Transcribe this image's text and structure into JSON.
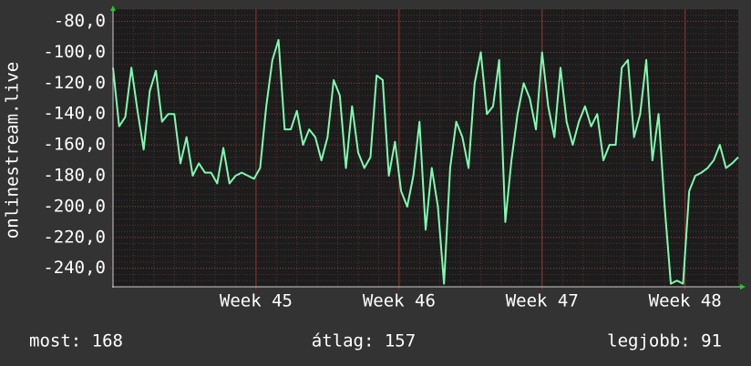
{
  "chart_data": {
    "type": "line",
    "ylabel": "onlinestream.live",
    "color": "#7dfcb0",
    "grid": true,
    "ylim": [
      -252,
      -72
    ],
    "yticks": [
      {
        "value": -80,
        "label": "-80,0"
      },
      {
        "value": -100,
        "label": "-100,0"
      },
      {
        "value": -120,
        "label": "-120,0"
      },
      {
        "value": -140,
        "label": "-140,0"
      },
      {
        "value": -160,
        "label": "-160,0"
      },
      {
        "value": -180,
        "label": "-180,0"
      },
      {
        "value": -200,
        "label": "-200,0"
      },
      {
        "value": -220,
        "label": "-220,0"
      },
      {
        "value": -240,
        "label": "-240,0"
      }
    ],
    "xlim": [
      0,
      30.6
    ],
    "xticks": [
      {
        "value": 7,
        "label": "Week 45"
      },
      {
        "value": 14,
        "label": "Week 46"
      },
      {
        "value": 21,
        "label": "Week 47"
      },
      {
        "value": 28,
        "label": "Week 48"
      }
    ],
    "x": [
      0,
      0.3,
      0.6,
      0.9,
      1.2,
      1.5,
      1.8,
      2.1,
      2.4,
      2.7,
      3,
      3.3,
      3.6,
      3.9,
      4.2,
      4.5,
      4.8,
      5.1,
      5.4,
      5.7,
      6,
      6.3,
      6.6,
      6.9,
      7.2,
      7.5,
      7.8,
      8.1,
      8.4,
      8.7,
      9,
      9.3,
      9.6,
      9.9,
      10.2,
      10.5,
      10.8,
      11.1,
      11.4,
      11.7,
      12,
      12.3,
      12.6,
      12.9,
      13.2,
      13.5,
      13.8,
      14.1,
      14.4,
      14.7,
      15,
      15.3,
      15.6,
      15.9,
      16.2,
      16.5,
      16.8,
      17.1,
      17.4,
      17.7,
      18,
      18.3,
      18.6,
      18.9,
      19.2,
      19.5,
      19.8,
      20.1,
      20.4,
      20.7,
      21,
      21.3,
      21.6,
      21.9,
      22.2,
      22.5,
      22.8,
      23.1,
      23.4,
      23.7,
      24,
      24.3,
      24.6,
      24.9,
      25.2,
      25.5,
      25.8,
      26.1,
      26.4,
      26.7,
      27,
      27.3,
      27.6,
      27.9,
      28.2,
      28.5,
      28.8,
      29.1,
      29.4,
      29.7,
      30,
      30.3,
      30.6
    ],
    "values": [
      -110,
      -148,
      -142,
      -110,
      -138,
      -163,
      -125,
      -112,
      -145,
      -140,
      -140,
      -172,
      -155,
      -180,
      -172,
      -178,
      -178,
      -185,
      -162,
      -185,
      -180,
      -178,
      -180,
      -182,
      -175,
      -135,
      -105,
      -92,
      -150,
      -150,
      -138,
      -160,
      -150,
      -155,
      -170,
      -155,
      -118,
      -128,
      -175,
      -135,
      -165,
      -175,
      -168,
      -115,
      -118,
      -180,
      -158,
      -190,
      -200,
      -180,
      -145,
      -215,
      -175,
      -200,
      -250,
      -175,
      -145,
      -155,
      -175,
      -120,
      -100,
      -140,
      -135,
      -105,
      -210,
      -170,
      -140,
      -120,
      -130,
      -150,
      -100,
      -135,
      -155,
      -110,
      -145,
      -160,
      -145,
      -135,
      -148,
      -140,
      -170,
      -160,
      -160,
      -110,
      -105,
      -155,
      -140,
      -105,
      -170,
      -140,
      -200,
      -250,
      -248,
      -250,
      -190,
      -180,
      -178,
      -175,
      -170,
      -160,
      -175,
      -172,
      -168
    ],
    "footer": {
      "current": "most: 168",
      "average": "átlag: 157",
      "best": "legjobb: 91"
    }
  }
}
